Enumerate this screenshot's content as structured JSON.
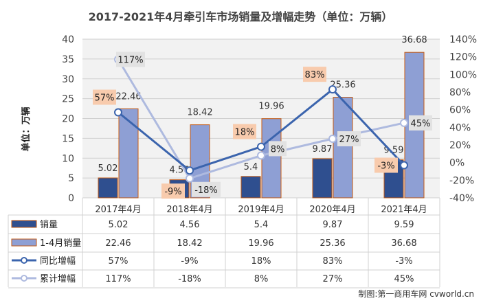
{
  "chart_data": {
    "type": "bar",
    "title": "2017-2021年4月牵引车市场销量及增幅走势（单位：万辆）",
    "ylabel": "单位：万辆",
    "categories": [
      "2017年4月",
      "2018年4月",
      "2019年4月",
      "2020年4月",
      "2021年4月"
    ],
    "ylim": [
      0,
      40
    ],
    "y_ticks": [
      "0",
      "5",
      "10",
      "15",
      "20",
      "25",
      "30",
      "35",
      "40"
    ],
    "y2lim": [
      -40,
      140
    ],
    "y2_ticks": [
      "-40%",
      "-20%",
      "0%",
      "20%",
      "40%",
      "60%",
      "80%",
      "100%",
      "120%",
      "140%"
    ],
    "series": [
      {
        "name": "销量",
        "kind": "bar",
        "axis": "left",
        "color": "#2f4f8f",
        "values": [
          5.02,
          4.56,
          5.4,
          9.87,
          9.59
        ],
        "labels": [
          "5.02",
          "4.56",
          "5.4",
          "9.87",
          "9.59"
        ]
      },
      {
        "name": "1-4月销量",
        "kind": "bar",
        "axis": "left",
        "color": "#8e9fd4",
        "values": [
          22.46,
          18.42,
          19.96,
          25.36,
          36.68
        ],
        "labels": [
          "22.46",
          "18.42",
          "19.96",
          "25.36",
          "36.68"
        ]
      },
      {
        "name": "同比增幅",
        "kind": "line",
        "axis": "right",
        "color": "#3b64ad",
        "values": [
          57,
          -9,
          18,
          83,
          -3
        ],
        "labels": [
          "57%",
          "-9%",
          "18%",
          "83%",
          "-3%"
        ]
      },
      {
        "name": "累计增幅",
        "kind": "line",
        "axis": "right",
        "color": "#aebadf",
        "values": [
          117,
          -18,
          8,
          27,
          45
        ],
        "labels": [
          "117%",
          "-18%",
          "8%",
          "27%",
          "45%"
        ]
      }
    ],
    "grid": true,
    "legend": "bottom data table"
  },
  "source_note": "制图:第一商用车网 cvworld.cn",
  "colors": {
    "bar_border": "#c55a11",
    "label_bg_a": "#f8cbad",
    "label_bg_b": "#e2e2e2"
  }
}
